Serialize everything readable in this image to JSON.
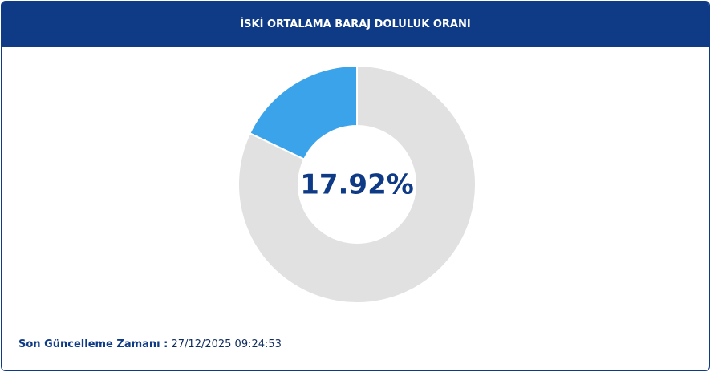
{
  "chart_data": {
    "type": "donut",
    "title": "İSKİ ORTALAMA BARAJ DOLULUK ORANI",
    "categories": [
      null,
      null
    ],
    "values": [
      17.92,
      82.08
    ],
    "value_labels": [
      "17.92%",
      null
    ],
    "colors": [
      "#3ba3ea",
      "#e1e1e1"
    ]
  },
  "footer": {
    "label": "Son Güncelleme Zamanı :",
    "value": "27/12/2025 09:24:53"
  }
}
